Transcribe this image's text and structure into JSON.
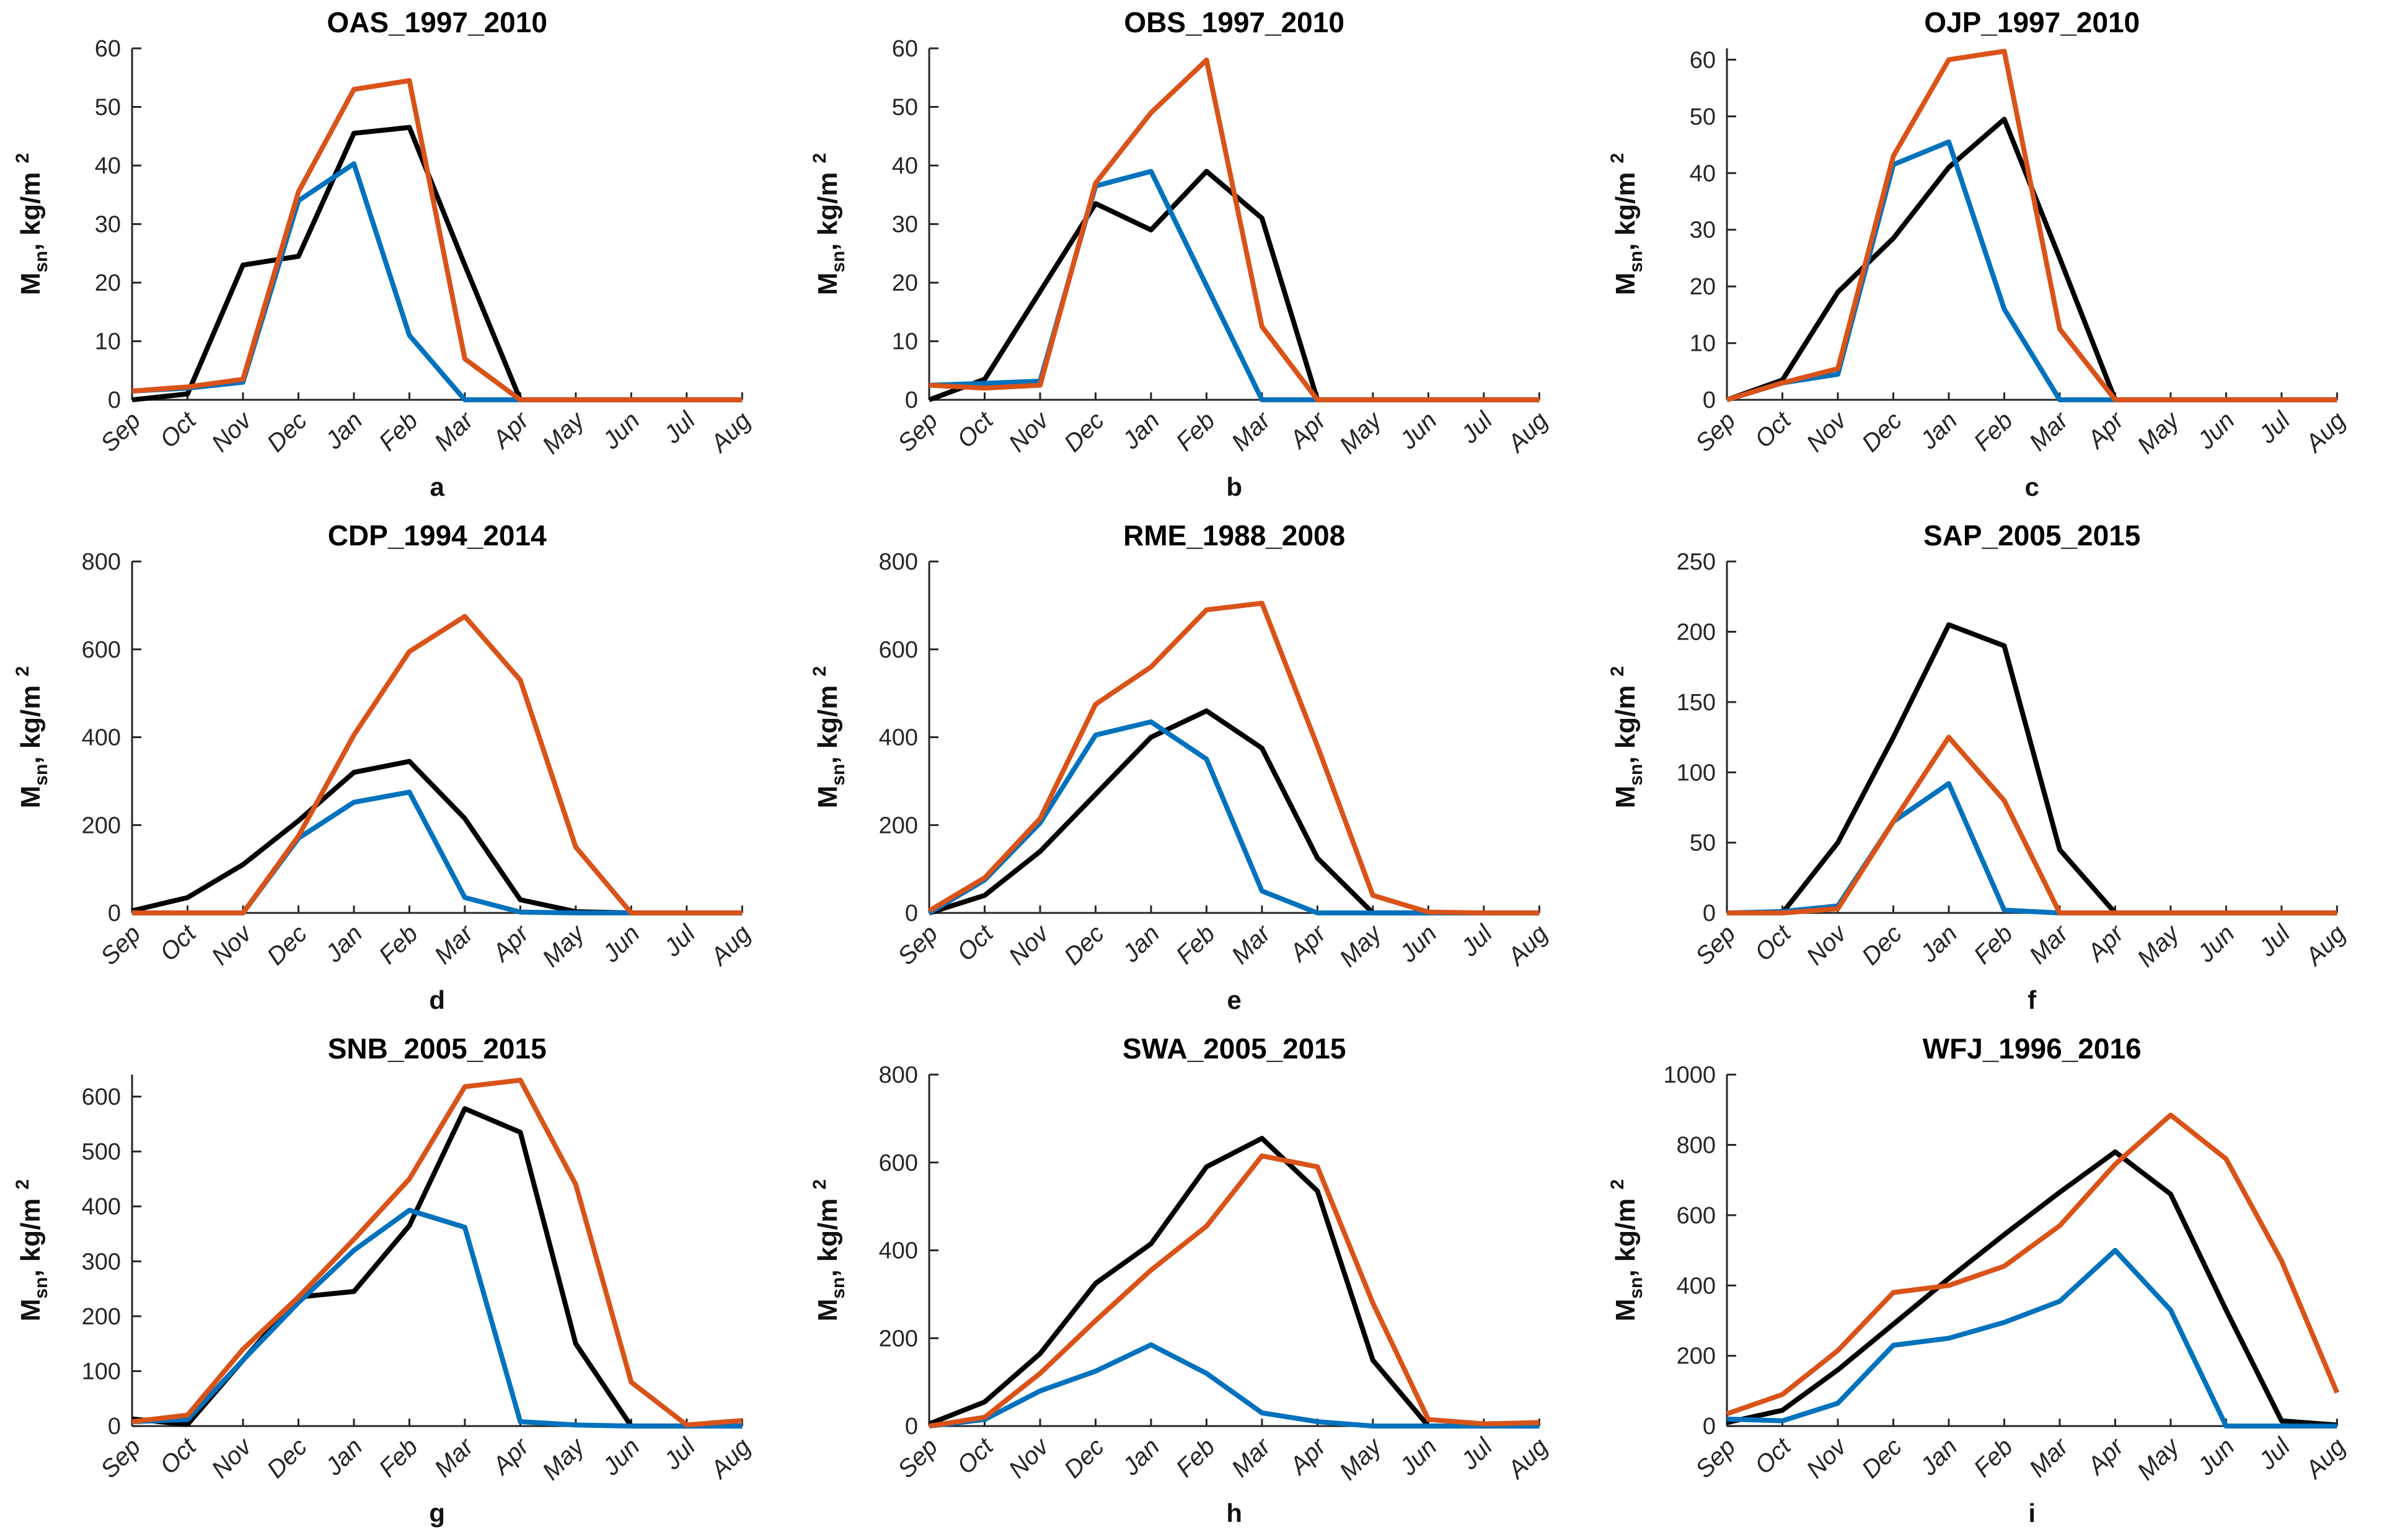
{
  "page": {
    "background": "#ffffff"
  },
  "months": [
    "Sep",
    "Oct",
    "Nov",
    "Dec",
    "Jan",
    "Feb",
    "Mar",
    "Apr",
    "May",
    "Jun",
    "Jul",
    "Aug"
  ],
  "ylabel": {
    "prefix": "M",
    "sub": "sn",
    "mid": ", kg/m",
    "sup": "2"
  },
  "colors": {
    "black_line": "#000000",
    "blue_line": "#0072BD",
    "orange_line": "#D95319",
    "axis": "#262626"
  },
  "chart_data": [
    {
      "type": "line",
      "title": "OAS_1997_2010",
      "letter": "a",
      "xlabel": "",
      "ylabel": "M_sn, kg/m^2",
      "yticks": [
        0,
        10,
        20,
        30,
        40,
        50,
        60
      ],
      "ylim": [
        0,
        60
      ],
      "grid": false,
      "legend": "none",
      "categories": [
        "Sep",
        "Oct",
        "Nov",
        "Dec",
        "Jan",
        "Feb",
        "Mar",
        "Apr",
        "May",
        "Jun",
        "Jul",
        "Aug"
      ],
      "series": [
        {
          "name": "black",
          "color": "#000000",
          "values": [
            0,
            1,
            23,
            24.5,
            45.5,
            46.5,
            23,
            0,
            0,
            0,
            0,
            0
          ]
        },
        {
          "name": "blue",
          "color": "#0072BD",
          "values": [
            1.5,
            2,
            3,
            34,
            40.3,
            11,
            0,
            0,
            0,
            0,
            0,
            0
          ]
        },
        {
          "name": "orange",
          "color": "#D95319",
          "values": [
            1.5,
            2.2,
            3.5,
            35.5,
            53,
            54.5,
            7,
            0,
            0,
            0,
            0,
            0
          ]
        }
      ]
    },
    {
      "type": "line",
      "title": "OBS_1997_2010",
      "letter": "b",
      "xlabel": "",
      "ylabel": "M_sn, kg/m^2",
      "yticks": [
        0,
        10,
        20,
        30,
        40,
        50,
        60
      ],
      "ylim": [
        0,
        60
      ],
      "grid": false,
      "legend": "none",
      "categories": [
        "Sep",
        "Oct",
        "Nov",
        "Dec",
        "Jan",
        "Feb",
        "Mar",
        "Apr",
        "May",
        "Jun",
        "Jul",
        "Aug"
      ],
      "series": [
        {
          "name": "black",
          "color": "#000000",
          "values": [
            0,
            3.5,
            18.5,
            33.5,
            29,
            39,
            31,
            0,
            0,
            0,
            0,
            0
          ]
        },
        {
          "name": "blue",
          "color": "#0072BD",
          "values": [
            2.5,
            2.8,
            3.2,
            36.5,
            39,
            19.5,
            0,
            0,
            0,
            0,
            0,
            0
          ]
        },
        {
          "name": "orange",
          "color": "#D95319",
          "values": [
            2.5,
            2,
            2.5,
            37,
            49,
            58,
            12.5,
            0,
            0,
            0,
            0,
            0
          ]
        }
      ]
    },
    {
      "type": "line",
      "title": "OJP_1997_2010",
      "letter": "c",
      "xlabel": "",
      "ylabel": "M_sn, kg/m^2",
      "yticks": [
        0,
        10,
        20,
        30,
        40,
        50,
        60
      ],
      "ylim": [
        0,
        62
      ],
      "grid": false,
      "legend": "none",
      "categories": [
        "Sep",
        "Oct",
        "Nov",
        "Dec",
        "Jan",
        "Feb",
        "Mar",
        "Apr",
        "May",
        "Jun",
        "Jul",
        "Aug"
      ],
      "series": [
        {
          "name": "black",
          "color": "#000000",
          "values": [
            0,
            3.5,
            19,
            28.5,
            41,
            49.5,
            25,
            0,
            0,
            0,
            0,
            0
          ]
        },
        {
          "name": "blue",
          "color": "#0072BD",
          "values": [
            0,
            3,
            4.5,
            41.5,
            45.5,
            16,
            0,
            0,
            0,
            0,
            0,
            0
          ]
        },
        {
          "name": "orange",
          "color": "#D95319",
          "values": [
            0,
            3,
            5.5,
            43,
            60,
            61.5,
            12.5,
            0,
            0,
            0,
            0,
            0
          ]
        }
      ]
    },
    {
      "type": "line",
      "title": "CDP_1994_2014",
      "letter": "d",
      "xlabel": "",
      "ylabel": "M_sn, kg/m^2",
      "yticks": [
        0,
        200,
        400,
        600,
        800
      ],
      "ylim": [
        0,
        800
      ],
      "grid": false,
      "legend": "none",
      "categories": [
        "Sep",
        "Oct",
        "Nov",
        "Dec",
        "Jan",
        "Feb",
        "Mar",
        "Apr",
        "May",
        "Jun",
        "Jul",
        "Aug"
      ],
      "series": [
        {
          "name": "black",
          "color": "#000000",
          "values": [
            5,
            35,
            110,
            210,
            320,
            345,
            215,
            30,
            3,
            0,
            0,
            0
          ]
        },
        {
          "name": "blue",
          "color": "#0072BD",
          "values": [
            0,
            0,
            0,
            170,
            252,
            275,
            35,
            2,
            0,
            0,
            0,
            0
          ]
        },
        {
          "name": "orange",
          "color": "#D95319",
          "values": [
            0,
            0,
            0,
            175,
            405,
            595,
            675,
            530,
            150,
            0,
            0,
            0
          ]
        }
      ]
    },
    {
      "type": "line",
      "title": "RME_1988_2008",
      "letter": "e",
      "xlabel": "",
      "ylabel": "M_sn, kg/m^2",
      "yticks": [
        0,
        200,
        400,
        600,
        800
      ],
      "ylim": [
        0,
        800
      ],
      "grid": false,
      "legend": "none",
      "categories": [
        "Sep",
        "Oct",
        "Nov",
        "Dec",
        "Jan",
        "Feb",
        "Mar",
        "Apr",
        "May",
        "Jun",
        "Jul",
        "Aug"
      ],
      "series": [
        {
          "name": "black",
          "color": "#000000",
          "values": [
            0,
            40,
            140,
            270,
            400,
            460,
            375,
            125,
            0,
            0,
            0,
            0
          ]
        },
        {
          "name": "blue",
          "color": "#0072BD",
          "values": [
            0,
            75,
            205,
            405,
            435,
            350,
            50,
            0,
            0,
            0,
            0,
            0
          ]
        },
        {
          "name": "orange",
          "color": "#D95319",
          "values": [
            5,
            80,
            215,
            475,
            560,
            690,
            705,
            380,
            40,
            2,
            0,
            0
          ]
        }
      ]
    },
    {
      "type": "line",
      "title": "SAP_2005_2015",
      "letter": "f",
      "xlabel": "",
      "ylabel": "M_sn, kg/m^2",
      "yticks": [
        0,
        50,
        100,
        150,
        200,
        250
      ],
      "ylim": [
        0,
        250
      ],
      "grid": false,
      "legend": "none",
      "categories": [
        "Sep",
        "Oct",
        "Nov",
        "Dec",
        "Jan",
        "Feb",
        "Mar",
        "Apr",
        "May",
        "Jun",
        "Jul",
        "Aug"
      ],
      "series": [
        {
          "name": "black",
          "color": "#000000",
          "values": [
            0,
            0,
            50,
            125,
            205,
            190,
            45,
            0,
            0,
            0,
            0,
            0
          ]
        },
        {
          "name": "blue",
          "color": "#0072BD",
          "values": [
            0,
            1,
            5,
            65,
            92,
            2,
            0,
            0,
            0,
            0,
            0,
            0
          ]
        },
        {
          "name": "orange",
          "color": "#D95319",
          "values": [
            0,
            0,
            3,
            65,
            125,
            80,
            0,
            0,
            0,
            0,
            0,
            0
          ]
        }
      ]
    },
    {
      "type": "line",
      "title": "SNB_2005_2015",
      "letter": "g",
      "xlabel": "",
      "ylabel": "M_sn, kg/m^2",
      "yticks": [
        0,
        100,
        200,
        300,
        400,
        500,
        600
      ],
      "ylim": [
        0,
        640
      ],
      "grid": false,
      "legend": "none",
      "categories": [
        "Sep",
        "Oct",
        "Nov",
        "Dec",
        "Jan",
        "Feb",
        "Mar",
        "Apr",
        "May",
        "Jun",
        "Jul",
        "Aug"
      ],
      "series": [
        {
          "name": "black",
          "color": "#000000",
          "values": [
            13,
            3,
            120,
            235,
            245,
            365,
            578,
            535,
            150,
            0,
            0,
            0
          ]
        },
        {
          "name": "blue",
          "color": "#0072BD",
          "values": [
            8,
            12,
            120,
            225,
            320,
            393,
            362,
            8,
            2,
            0,
            0,
            0
          ]
        },
        {
          "name": "orange",
          "color": "#D95319",
          "values": [
            8,
            20,
            140,
            235,
            340,
            450,
            618,
            630,
            440,
            80,
            2,
            10
          ]
        }
      ]
    },
    {
      "type": "line",
      "title": "SWA_2005_2015",
      "letter": "h",
      "xlabel": "",
      "ylabel": "M_sn, kg/m^2",
      "yticks": [
        0,
        200,
        400,
        600,
        800
      ],
      "ylim": [
        0,
        800
      ],
      "grid": false,
      "legend": "none",
      "categories": [
        "Sep",
        "Oct",
        "Nov",
        "Dec",
        "Jan",
        "Feb",
        "Mar",
        "Apr",
        "May",
        "Jun",
        "Jul",
        "Aug"
      ],
      "series": [
        {
          "name": "black",
          "color": "#000000",
          "values": [
            5,
            55,
            165,
            325,
            415,
            590,
            655,
            535,
            150,
            0,
            0,
            0
          ]
        },
        {
          "name": "blue",
          "color": "#0072BD",
          "values": [
            0,
            15,
            80,
            125,
            185,
            120,
            30,
            10,
            0,
            0,
            0,
            0
          ]
        },
        {
          "name": "orange",
          "color": "#D95319",
          "values": [
            0,
            20,
            120,
            240,
            355,
            455,
            615,
            590,
            280,
            15,
            5,
            8
          ]
        }
      ]
    },
    {
      "type": "line",
      "title": "WFJ_1996_2016",
      "letter": "i",
      "xlabel": "",
      "ylabel": "M_sn, kg/m^2",
      "yticks": [
        0,
        200,
        400,
        600,
        800,
        1000
      ],
      "ylim": [
        0,
        1000
      ],
      "grid": false,
      "legend": "none",
      "categories": [
        "Sep",
        "Oct",
        "Nov",
        "Dec",
        "Jan",
        "Feb",
        "Mar",
        "Apr",
        "May",
        "Jun",
        "Jul",
        "Aug"
      ],
      "series": [
        {
          "name": "black",
          "color": "#000000",
          "values": [
            10,
            45,
            160,
            290,
            420,
            545,
            665,
            780,
            660,
            330,
            15,
            3
          ]
        },
        {
          "name": "blue",
          "color": "#0072BD",
          "values": [
            20,
            15,
            65,
            230,
            250,
            295,
            355,
            500,
            330,
            0,
            0,
            0
          ]
        },
        {
          "name": "orange",
          "color": "#D95319",
          "values": [
            35,
            90,
            215,
            380,
            400,
            455,
            570,
            745,
            885,
            760,
            470,
            95
          ]
        }
      ]
    }
  ]
}
